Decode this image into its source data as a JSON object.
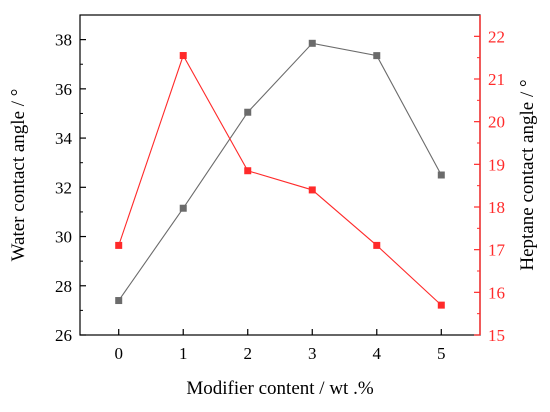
{
  "chart_data": {
    "type": "line",
    "title": "",
    "xlabel": "Modifier content / wt .%",
    "ylabel_left": "Water contact angle / °",
    "ylabel_right": "Heptane contact angle / °",
    "x": [
      0,
      1,
      2,
      3,
      4,
      5
    ],
    "xlim": [
      -0.6,
      5.6
    ],
    "ylim_left": [
      26,
      39
    ],
    "ylim_right": [
      15,
      22.5
    ],
    "ticks_left": [
      26,
      28,
      30,
      32,
      34,
      36,
      38
    ],
    "ticks_right": [
      15,
      16,
      17,
      18,
      19,
      20,
      21,
      22
    ],
    "grid": false,
    "legend": "none",
    "series": [
      {
        "axis": "left",
        "color": "#6b6b6b",
        "marker": "square",
        "values": [
          27.4,
          31.15,
          35.05,
          37.85,
          37.35,
          32.5
        ]
      },
      {
        "axis": "right",
        "color": "#ff2a2a",
        "marker": "square",
        "values": [
          17.1,
          21.55,
          18.85,
          18.4,
          17.1,
          15.7
        ]
      }
    ]
  }
}
